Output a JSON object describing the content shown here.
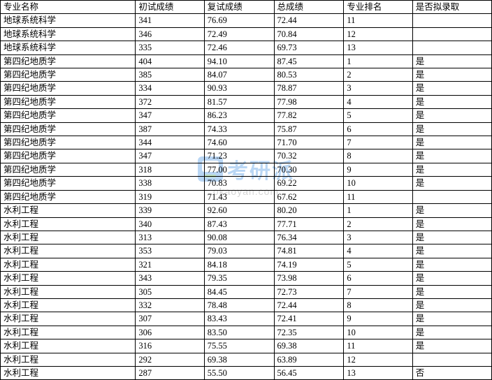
{
  "watermark": {
    "brand": "考研派",
    "url": "okaoyan.com"
  },
  "table": {
    "columns": [
      "专业名称",
      "初试成绩",
      "复试成绩",
      "总成绩",
      "专业排名",
      "是否拟录取"
    ],
    "rows": [
      [
        "地球系统科学",
        "341",
        "76.69",
        "72.44",
        "11",
        ""
      ],
      [
        "地球系统科学",
        "346",
        "72.49",
        "70.84",
        "12",
        ""
      ],
      [
        "地球系统科学",
        "335",
        "72.46",
        "69.73",
        "13",
        ""
      ],
      [
        "第四纪地质学",
        "404",
        "94.10",
        "87.45",
        "1",
        "是"
      ],
      [
        "第四纪地质学",
        "385",
        "84.07",
        "80.53",
        "2",
        "是"
      ],
      [
        "第四纪地质学",
        "334",
        "90.93",
        "78.87",
        "3",
        "是"
      ],
      [
        "第四纪地质学",
        "372",
        "81.57",
        "77.98",
        "4",
        "是"
      ],
      [
        "第四纪地质学",
        "347",
        "86.23",
        "77.82",
        "5",
        "是"
      ],
      [
        "第四纪地质学",
        "387",
        "74.33",
        "75.87",
        "6",
        "是"
      ],
      [
        "第四纪地质学",
        "344",
        "74.60",
        "71.70",
        "7",
        "是"
      ],
      [
        "第四纪地质学",
        "347",
        "71.23",
        "70.32",
        "8",
        "是"
      ],
      [
        "第四纪地质学",
        "318",
        "77.00",
        "70.30",
        "9",
        "是"
      ],
      [
        "第四纪地质学",
        "338",
        "70.83",
        "69.22",
        "10",
        "是"
      ],
      [
        "第四纪地质学",
        "319",
        "71.43",
        "67.62",
        "11",
        ""
      ],
      [
        "水利工程",
        "339",
        "92.60",
        "80.20",
        "1",
        "是"
      ],
      [
        "水利工程",
        "340",
        "87.43",
        "77.71",
        "2",
        "是"
      ],
      [
        "水利工程",
        "313",
        "90.08",
        "76.34",
        "3",
        "是"
      ],
      [
        "水利工程",
        "353",
        "79.03",
        "74.81",
        "4",
        "是"
      ],
      [
        "水利工程",
        "321",
        "84.18",
        "74.19",
        "5",
        "是"
      ],
      [
        "水利工程",
        "343",
        "79.35",
        "73.98",
        "6",
        "是"
      ],
      [
        "水利工程",
        "305",
        "84.45",
        "72.73",
        "7",
        "是"
      ],
      [
        "水利工程",
        "332",
        "78.48",
        "72.44",
        "8",
        "是"
      ],
      [
        "水利工程",
        "307",
        "83.43",
        "72.41",
        "9",
        "是"
      ],
      [
        "水利工程",
        "306",
        "83.50",
        "72.35",
        "10",
        "是"
      ],
      [
        "水利工程",
        "316",
        "75.55",
        "69.38",
        "11",
        "是"
      ],
      [
        "水利工程",
        "292",
        "69.38",
        "63.89",
        "12",
        ""
      ],
      [
        "水利工程",
        "287",
        "55.50",
        "56.45",
        "13",
        "否"
      ]
    ]
  }
}
